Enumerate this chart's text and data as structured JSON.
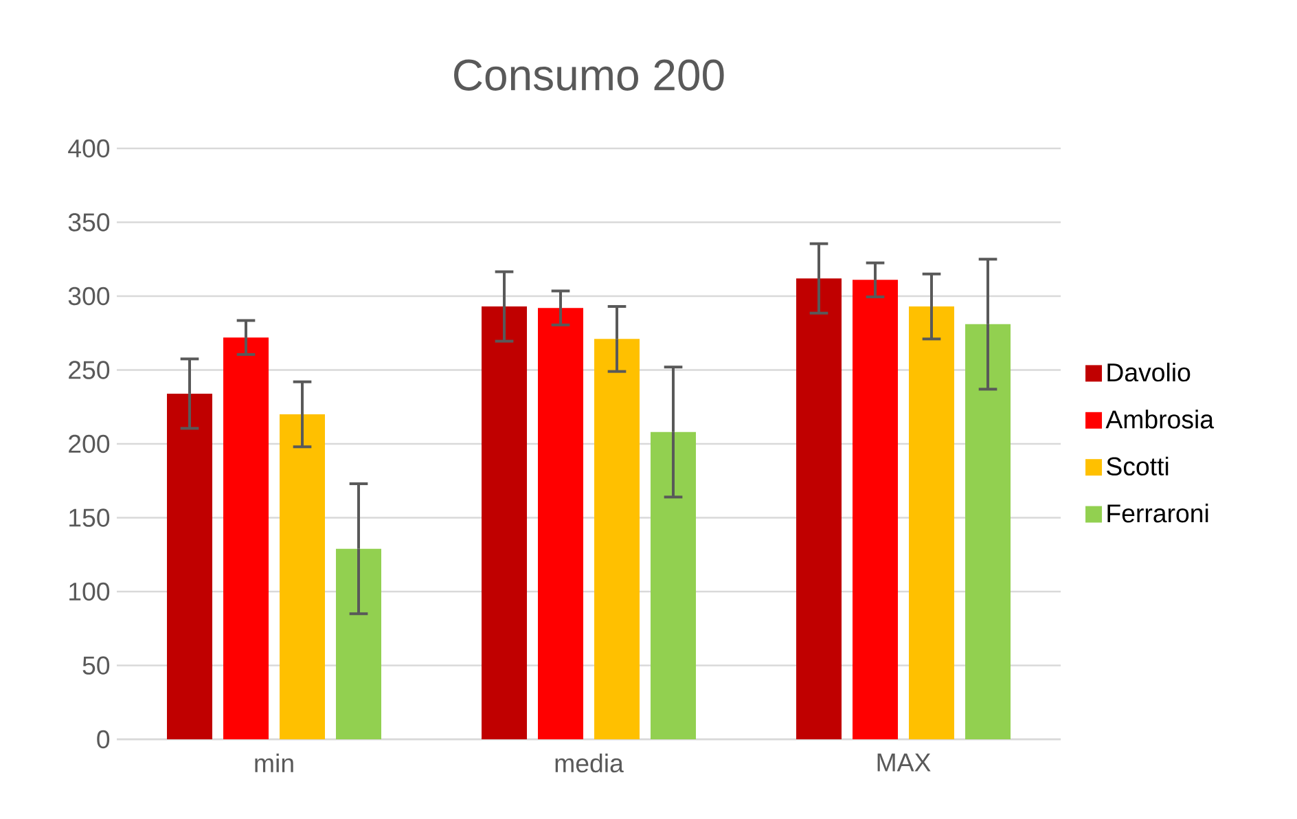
{
  "chart_data": {
    "type": "bar",
    "title": "Consumo 200",
    "categories": [
      "min",
      "media",
      "MAX"
    ],
    "series": [
      {
        "name": "Davolio",
        "color": "#c00000",
        "values": [
          234,
          293,
          312
        ],
        "errors": [
          23.5,
          23.5,
          23.5
        ]
      },
      {
        "name": "Ambrosia",
        "color": "#ff0000",
        "values": [
          272,
          292,
          311
        ],
        "errors": [
          11.5,
          11.5,
          11.5
        ]
      },
      {
        "name": "Scotti",
        "color": "#ffc000",
        "values": [
          220,
          271,
          293
        ],
        "errors": [
          22,
          22,
          22
        ]
      },
      {
        "name": "Ferraroni",
        "color": "#92d050",
        "values": [
          129,
          208,
          281
        ],
        "errors": [
          44,
          44,
          44
        ]
      }
    ],
    "ylim": [
      0,
      400
    ],
    "yticks": [
      0,
      50,
      100,
      150,
      200,
      250,
      300,
      350,
      400
    ],
    "grid": "y",
    "legend": "right"
  }
}
